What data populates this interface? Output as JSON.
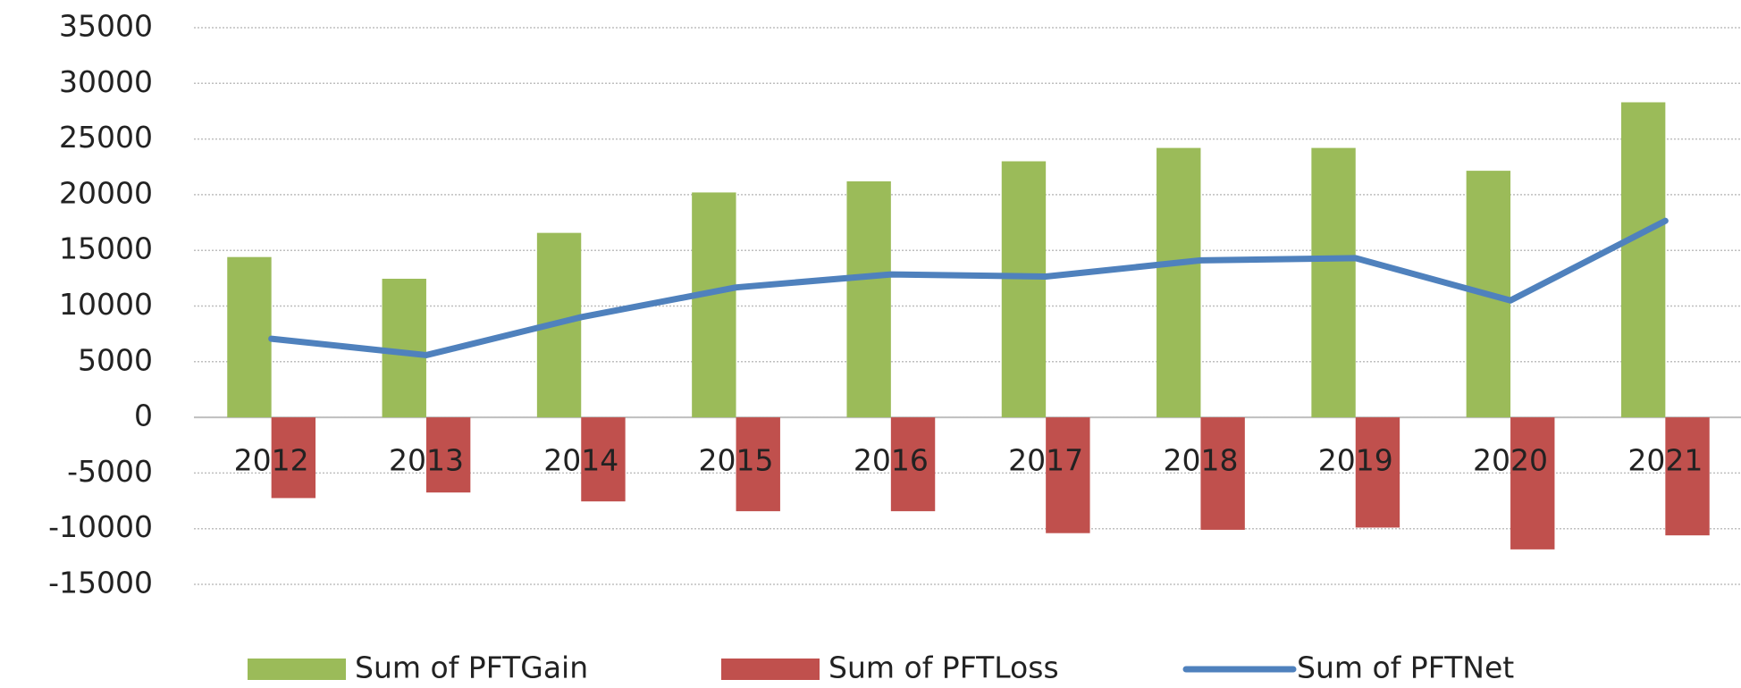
{
  "chart_data": {
    "type": "bar",
    "categories": [
      "2012",
      "2013",
      "2014",
      "2015",
      "2016",
      "2017",
      "2018",
      "2019",
      "2020",
      "2021"
    ],
    "series": [
      {
        "name": "Sum of PFTGain",
        "color": "#9bbb59",
        "type": "bar",
        "values": [
          14400,
          12450,
          16570,
          20200,
          21200,
          23000,
          24200,
          24200,
          22150,
          28300
        ]
      },
      {
        "name": "Sum of PFTLoss",
        "color": "#c0504d",
        "type": "bar",
        "values": [
          -7250,
          -6750,
          -7550,
          -8430,
          -8430,
          -10400,
          -10100,
          -9900,
          -11860,
          -10600
        ]
      },
      {
        "name": "Sum of PFTNet",
        "color": "#4f81bd",
        "type": "line",
        "values": [
          7060,
          5590,
          9000,
          11670,
          12840,
          12650,
          14100,
          14300,
          10500,
          17650
        ]
      }
    ],
    "ylim": [
      -15000,
      35000
    ],
    "yticks": [
      -15000,
      -10000,
      -5000,
      0,
      5000,
      10000,
      15000,
      20000,
      25000,
      30000,
      35000
    ],
    "grid": true,
    "legend": "bottom"
  }
}
